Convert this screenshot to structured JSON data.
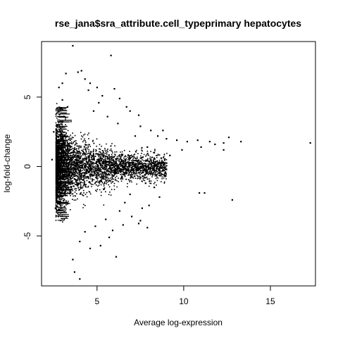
{
  "chart_data": {
    "type": "scatter",
    "title": "rse_jana$sra_attribute.cell_typeprimary hepatocytes",
    "xlabel": "Average log-expression",
    "ylabel": "log-fold-change",
    "xlim": [
      1.8,
      17.6
    ],
    "ylim": [
      -8.6,
      9.0
    ],
    "x_ticks": [
      5,
      10,
      15
    ],
    "y_ticks": [
      -5,
      0,
      5
    ],
    "x_tick_labels": [
      "5",
      "10",
      "15"
    ],
    "y_tick_labels": [
      "-5",
      "0",
      "5"
    ],
    "grid": false,
    "legend": "none",
    "point_color": "#000000",
    "dense_region": {
      "description": "dense cloud of several thousand genes",
      "x_range": [
        2.6,
        9.0
      ],
      "y_range": [
        -4.0,
        4.6
      ]
    },
    "points": [
      [
        3.6,
        8.7
      ],
      [
        5.8,
        8.0
      ],
      [
        4.1,
        6.9
      ],
      [
        3.9,
        6.8
      ],
      [
        3.2,
        6.7
      ],
      [
        4.3,
        6.3
      ],
      [
        4.6,
        6.0
      ],
      [
        5.0,
        5.7
      ],
      [
        6.0,
        5.6
      ],
      [
        4.5,
        5.5
      ],
      [
        5.3,
        5.1
      ],
      [
        6.3,
        4.9
      ],
      [
        3.0,
        4.8
      ],
      [
        6.7,
        4.3
      ],
      [
        6.9,
        4.0
      ],
      [
        7.4,
        3.7
      ],
      [
        5.6,
        3.6
      ],
      [
        7.5,
        2.9
      ],
      [
        8.1,
        2.6
      ],
      [
        8.8,
        2.6
      ],
      [
        8.5,
        2.2
      ],
      [
        9.0,
        2.0
      ],
      [
        9.6,
        1.9
      ],
      [
        10.2,
        1.8
      ],
      [
        10.8,
        1.9
      ],
      [
        11.5,
        1.8
      ],
      [
        11.8,
        1.6
      ],
      [
        12.3,
        1.7
      ],
      [
        12.6,
        2.1
      ],
      [
        13.3,
        1.8
      ],
      [
        12.3,
        1.2
      ],
      [
        11.0,
        1.4
      ],
      [
        9.9,
        1.2
      ],
      [
        9.2,
        0.8
      ],
      [
        9.0,
        -0.2
      ],
      [
        8.6,
        -0.5
      ],
      [
        17.3,
        1.7
      ],
      [
        10.9,
        -1.9
      ],
      [
        11.2,
        -1.9
      ],
      [
        12.8,
        -2.4
      ],
      [
        8.6,
        -2.2
      ],
      [
        8.0,
        -2.8
      ],
      [
        7.6,
        -3.0
      ],
      [
        7.0,
        -3.6
      ],
      [
        7.4,
        -4.1
      ],
      [
        7.9,
        -4.4
      ],
      [
        7.5,
        -3.9
      ],
      [
        6.5,
        -4.2
      ],
      [
        6.3,
        -3.2
      ],
      [
        5.9,
        -4.6
      ],
      [
        5.7,
        -5.1
      ],
      [
        4.3,
        -4.7
      ],
      [
        4.0,
        -5.4
      ],
      [
        4.6,
        -5.9
      ],
      [
        5.2,
        -5.7
      ],
      [
        6.1,
        -6.5
      ],
      [
        3.6,
        -6.7
      ],
      [
        3.7,
        -7.6
      ],
      [
        4.0,
        -8.1
      ],
      [
        2.6,
        -3.0
      ],
      [
        2.4,
        0.5
      ],
      [
        2.5,
        2.5
      ],
      [
        3.3,
        4.3
      ],
      [
        2.8,
        5.7
      ],
      [
        3.0,
        6.0
      ],
      [
        5.1,
        4.6
      ],
      [
        6.2,
        3.1
      ],
      [
        4.8,
        4.0
      ],
      [
        7.2,
        2.2
      ],
      [
        7.9,
        1.4
      ],
      [
        8.3,
        1.0
      ],
      [
        8.7,
        0.6
      ],
      [
        7.8,
        -1.2
      ],
      [
        8.3,
        -1.5
      ],
      [
        6.9,
        -2.0
      ],
      [
        6.6,
        -2.6
      ],
      [
        5.5,
        -3.8
      ],
      [
        4.9,
        -4.3
      ]
    ]
  }
}
